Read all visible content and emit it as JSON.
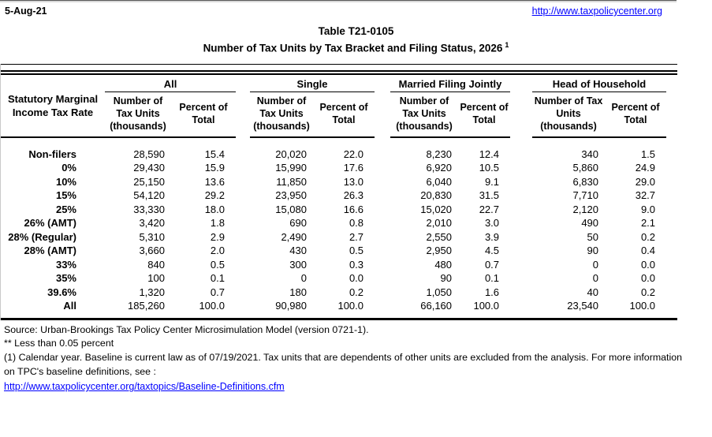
{
  "page": {
    "date": "5-Aug-21",
    "site_url": "http://www.taxpolicycenter.org"
  },
  "title": {
    "line1": "Table T21-0105",
    "line2": "Number of Tax Units by Tax Bracket and Filing Status, 2026",
    "footnote_marker": "1"
  },
  "table": {
    "row_header": "Statutory Marginal Income Tax Rate",
    "groups": [
      "All",
      "Single",
      "Married Filing Jointly",
      "Head of Household"
    ],
    "number_header": "Number of Tax Units (thousands)",
    "percent_header": "Percent of Total",
    "rows": [
      {
        "label": "Non-filers",
        "values": [
          "28,590",
          "15.4",
          "20,020",
          "22.0",
          "8,230",
          "12.4",
          "340",
          "1.5"
        ]
      },
      {
        "label": "0%",
        "values": [
          "29,430",
          "15.9",
          "15,990",
          "17.6",
          "6,920",
          "10.5",
          "5,860",
          "24.9"
        ]
      },
      {
        "label": "10%",
        "values": [
          "25,150",
          "13.6",
          "11,850",
          "13.0",
          "6,040",
          "9.1",
          "6,830",
          "29.0"
        ]
      },
      {
        "label": "15%",
        "values": [
          "54,120",
          "29.2",
          "23,950",
          "26.3",
          "20,830",
          "31.5",
          "7,710",
          "32.7"
        ]
      },
      {
        "label": "25%",
        "values": [
          "33,330",
          "18.0",
          "15,080",
          "16.6",
          "15,020",
          "22.7",
          "2,120",
          "9.0"
        ]
      },
      {
        "label": "26% (AMT)",
        "values": [
          "3,420",
          "1.8",
          "690",
          "0.8",
          "2,010",
          "3.0",
          "490",
          "2.1"
        ]
      },
      {
        "label": "28% (Regular)",
        "values": [
          "5,310",
          "2.9",
          "2,490",
          "2.7",
          "2,550",
          "3.9",
          "50",
          "0.2"
        ]
      },
      {
        "label": "28% (AMT)",
        "values": [
          "3,660",
          "2.0",
          "430",
          "0.5",
          "2,950",
          "4.5",
          "90",
          "0.4"
        ]
      },
      {
        "label": "33%",
        "values": [
          "840",
          "0.5",
          "300",
          "0.3",
          "480",
          "0.7",
          "0",
          "0.0"
        ]
      },
      {
        "label": "35%",
        "values": [
          "100",
          "0.1",
          "0",
          "0.0",
          "90",
          "0.1",
          "0",
          "0.0"
        ]
      },
      {
        "label": "39.6%",
        "values": [
          "1,320",
          "0.7",
          "180",
          "0.2",
          "1,050",
          "1.6",
          "40",
          "0.2"
        ]
      },
      {
        "label": "All",
        "values": [
          "185,260",
          "100.0",
          "90,980",
          "100.0",
          "66,160",
          "100.0",
          "23,540",
          "100.0"
        ]
      }
    ]
  },
  "footer": {
    "source": "Source: Urban-Brookings Tax Policy Center Microsimulation Model (version 0721-1).",
    "less_note": "** Less than 0.05 percent",
    "calendar_note": "(1) Calendar year. Baseline is current law as of 07/19/2021. Tax units that are dependents of other units are excluded from the analysis. For more information on TPC's baseline definitions, see :",
    "definitions_url": "http://www.taxpolicycenter.org/taxtopics/Baseline-Definitions.cfm"
  },
  "colors": {
    "link": "#0000FF",
    "text": "#000000",
    "rule": "#000000"
  }
}
